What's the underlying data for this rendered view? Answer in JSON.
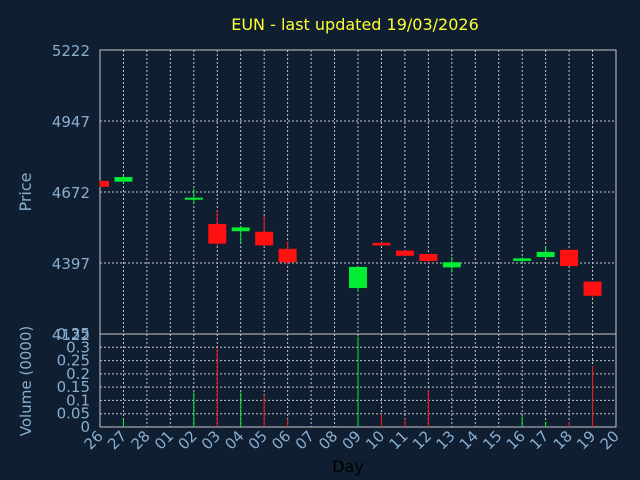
{
  "colors": {
    "background": "#0f1e30",
    "up": "#00ee33",
    "down": "#ff1111",
    "grid": "#c8c8c8",
    "text": "#8aaed0",
    "title": "#ffff33"
  },
  "chart_data": {
    "type": "candlestick",
    "title": "EUN - last updated 19/03/2026",
    "xlabel": "Day",
    "x_ticks": [
      "26",
      "27",
      "28",
      "01",
      "02",
      "03",
      "04",
      "05",
      "06",
      "07",
      "08",
      "09",
      "10",
      "11",
      "12",
      "13",
      "14",
      "15",
      "16",
      "17",
      "18",
      "19",
      "20"
    ],
    "price": {
      "ylabel": "Price",
      "ylim": [
        4122,
        5222
      ],
      "ticks": [
        "5222",
        "4947",
        "4672",
        "4397",
        "4122"
      ],
      "tick_values": [
        5222,
        4947,
        4672,
        4397,
        4122
      ],
      "candles": [
        {
          "day": "26",
          "open": 4715,
          "high": 4715,
          "low": 4692,
          "close": 4692
        },
        {
          "day": "27",
          "open": 4712,
          "high": 4737,
          "low": 4705,
          "close": 4730
        },
        {
          "day": "02",
          "open": 4645,
          "high": 4685,
          "low": 4630,
          "close": 4650
        },
        {
          "day": "03",
          "open": 4548,
          "high": 4600,
          "low": 4462,
          "close": 4472
        },
        {
          "day": "04",
          "open": 4520,
          "high": 4540,
          "low": 4475,
          "close": 4535
        },
        {
          "day": "05",
          "open": 4518,
          "high": 4580,
          "low": 4465,
          "close": 4465
        },
        {
          "day": "06",
          "open": 4452,
          "high": 4480,
          "low": 4390,
          "close": 4400
        },
        {
          "day": "09",
          "open": 4300,
          "high": 4382,
          "low": 4285,
          "close": 4382
        },
        {
          "day": "10",
          "open": 4475,
          "high": 4475,
          "low": 4465,
          "close": 4465
        },
        {
          "day": "11",
          "open": 4445,
          "high": 4445,
          "low": 4425,
          "close": 4425
        },
        {
          "day": "12",
          "open": 4432,
          "high": 4432,
          "low": 4395,
          "close": 4405
        },
        {
          "day": "13",
          "open": 4380,
          "high": 4420,
          "low": 4360,
          "close": 4400
        },
        {
          "day": "16",
          "open": 4405,
          "high": 4420,
          "low": 4395,
          "close": 4415
        },
        {
          "day": "17",
          "open": 4420,
          "high": 4460,
          "low": 4415,
          "close": 4440
        },
        {
          "day": "18",
          "open": 4448,
          "high": 4448,
          "low": 4385,
          "close": 4385
        },
        {
          "day": "19",
          "open": 4325,
          "high": 4325,
          "low": 4260,
          "close": 4270
        }
      ]
    },
    "volume": {
      "ylabel": "Volume (0000)",
      "ylim": [
        0,
        0.35
      ],
      "ticks": [
        "0.35",
        "0.3",
        "0.25",
        "0.2",
        "0.15",
        "0.1",
        "0.05",
        "0"
      ],
      "tick_values": [
        0.35,
        0.3,
        0.25,
        0.2,
        0.15,
        0.1,
        0.05,
        0
      ],
      "bars": [
        {
          "day": "27",
          "value": 0.03,
          "dir": "up"
        },
        {
          "day": "02",
          "value": 0.13,
          "dir": "up"
        },
        {
          "day": "03",
          "value": 0.3,
          "dir": "down"
        },
        {
          "day": "04",
          "value": 0.13,
          "dir": "up"
        },
        {
          "day": "05",
          "value": 0.12,
          "dir": "down"
        },
        {
          "day": "06",
          "value": 0.03,
          "dir": "down"
        },
        {
          "day": "09",
          "value": 0.34,
          "dir": "up"
        },
        {
          "day": "10",
          "value": 0.05,
          "dir": "down"
        },
        {
          "day": "11",
          "value": 0.03,
          "dir": "down"
        },
        {
          "day": "12",
          "value": 0.14,
          "dir": "down"
        },
        {
          "day": "16",
          "value": 0.04,
          "dir": "up"
        },
        {
          "day": "17",
          "value": 0.02,
          "dir": "up"
        },
        {
          "day": "18",
          "value": 0.02,
          "dir": "down"
        },
        {
          "day": "19",
          "value": 0.23,
          "dir": "down"
        }
      ]
    }
  }
}
